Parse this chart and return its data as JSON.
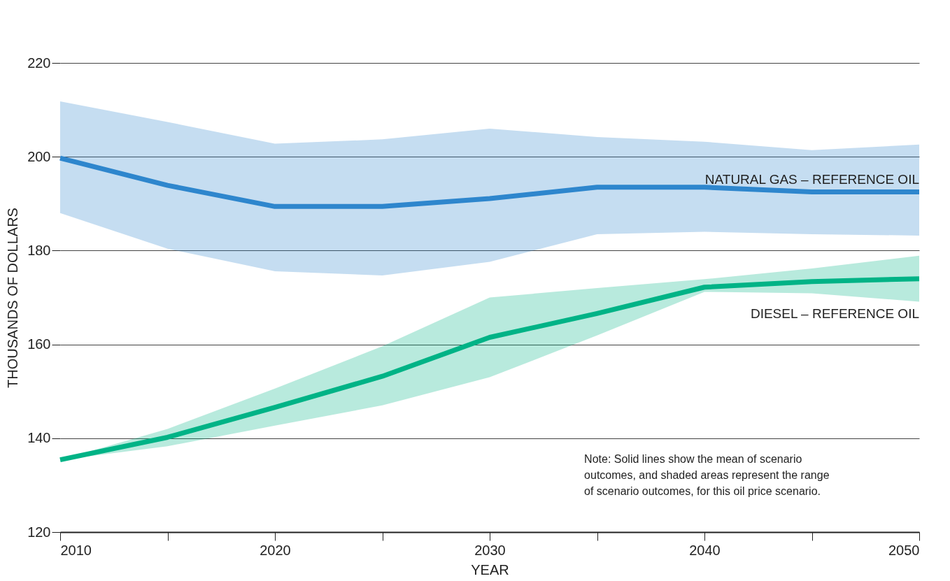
{
  "chart_data": {
    "type": "line",
    "xlabel": "YEAR",
    "ylabel": "THOUSANDS OF DOLLARS",
    "x": [
      2010,
      2015,
      2020,
      2025,
      2030,
      2035,
      2040,
      2045,
      2050
    ],
    "series": [
      {
        "name": "NATURAL GAS – REFERENCE OIL",
        "color": "#2e86cd",
        "values": [
          199.7,
          193.9,
          189.4,
          189.4,
          191.1,
          193.5,
          193.5,
          192.5,
          192.5
        ],
        "lower": [
          188,
          180.4,
          175.6,
          174.7,
          177.6,
          183.5,
          184,
          183.5,
          183.2
        ],
        "upper": [
          211.8,
          207.4,
          202.8,
          203.7,
          206,
          204.2,
          203.2,
          201.4,
          202.6
        ]
      },
      {
        "name": "DIESEL – REFERENCE OIL",
        "color": "#00b386",
        "values": [
          135.4,
          140.2,
          146.6,
          153.2,
          161.5,
          166.6,
          172.2,
          173.4,
          174
        ],
        "lower": [
          135.4,
          138.3,
          142.7,
          147,
          153,
          161.9,
          171.2,
          170.9,
          169.1
        ],
        "upper": [
          135.4,
          142,
          150.6,
          159.6,
          170,
          172,
          173.9,
          176.2,
          178.9
        ]
      }
    ],
    "xlim": [
      2010,
      2050
    ],
    "xticks": [
      2010,
      {
        "value": 2015,
        "label": null
      },
      2020,
      {
        "value": 2025,
        "label": null
      },
      2030,
      {
        "value": 2035,
        "label": null
      },
      2040,
      {
        "value": 2045,
        "label": null
      },
      2050
    ],
    "ylim": [
      120,
      220
    ],
    "yticks": [
      120,
      140,
      160,
      180,
      200,
      220
    ],
    "grid": "y",
    "legend": false,
    "line_style": "solid",
    "marker": "none",
    "annotations": [
      "Note:  Solid lines show the mean of scenario\noutcomes, and shaded areas represent the range\nof scenario outcomes, for this oil price scenario."
    ]
  }
}
